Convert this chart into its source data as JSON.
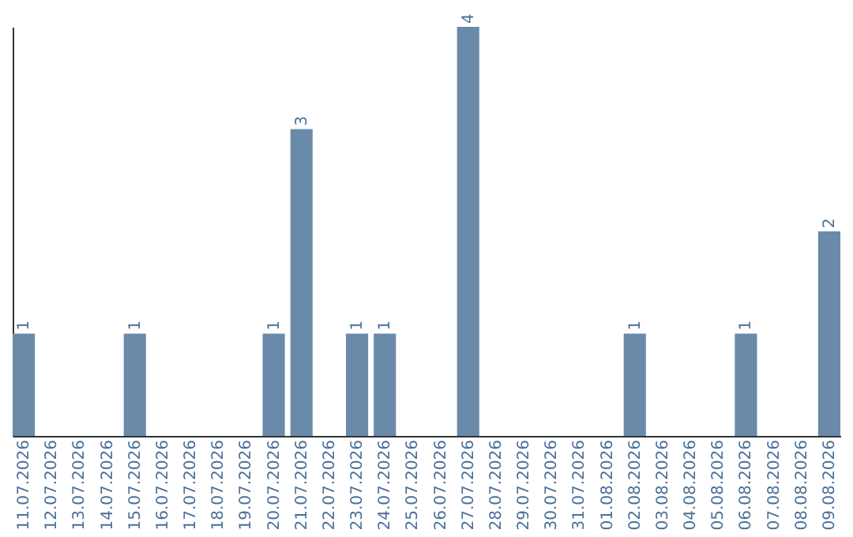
{
  "chart_data": {
    "type": "bar",
    "categories": [
      "11.07.2026",
      "12.07.2026",
      "13.07.2026",
      "14.07.2026",
      "15.07.2026",
      "16.07.2026",
      "17.07.2026",
      "18.07.2026",
      "19.07.2026",
      "20.07.2026",
      "21.07.2026",
      "22.07.2026",
      "23.07.2026",
      "24.07.2026",
      "25.07.2026",
      "26.07.2026",
      "27.07.2026",
      "28.07.2026",
      "29.07.2026",
      "30.07.2026",
      "31.07.2026",
      "01.08.2026",
      "02.08.2026",
      "03.08.2026",
      "04.08.2026",
      "05.08.2026",
      "06.08.2026",
      "07.08.2026",
      "08.08.2026",
      "09.08.2026"
    ],
    "values": [
      1,
      0,
      0,
      0,
      1,
      0,
      0,
      0,
      0,
      1,
      3,
      0,
      1,
      1,
      0,
      0,
      4,
      0,
      0,
      0,
      0,
      0,
      1,
      0,
      0,
      0,
      1,
      0,
      0,
      2
    ],
    "value_labels": [
      "1",
      null,
      null,
      null,
      "1",
      null,
      null,
      null,
      null,
      "1",
      "3",
      null,
      "1",
      "1",
      null,
      null,
      "4",
      null,
      null,
      null,
      null,
      null,
      "1",
      null,
      null,
      null,
      "1",
      null,
      null,
      "2"
    ],
    "color": "#6a8aaa",
    "ylim": [
      0,
      4
    ],
    "tick_labels": "x",
    "grid": false
  }
}
